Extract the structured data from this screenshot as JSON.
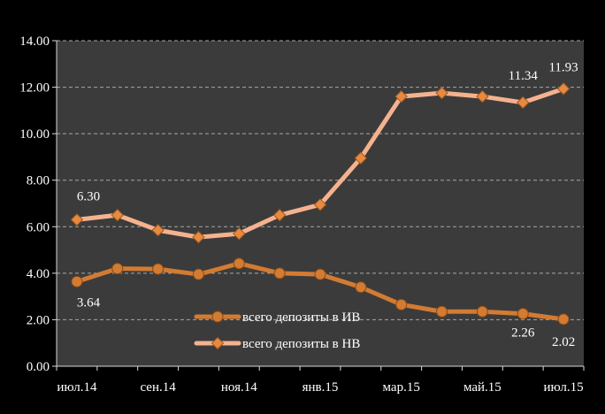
{
  "chart_data": {
    "type": "line",
    "categories": [
      "июл.14",
      "авг.14",
      "сен.14",
      "окт.14",
      "ноя.14",
      "дек.14",
      "янв.15",
      "фев.15",
      "мар.15",
      "апр.15",
      "май.15",
      "июн.15",
      "июл.15"
    ],
    "x_tick_labels": [
      "июл.14",
      "сен.14",
      "ноя.14",
      "янв.15",
      "мар.15",
      "май.15",
      "июл.15"
    ],
    "y_tick_labels": [
      "0.00",
      "2.00",
      "4.00",
      "6.00",
      "8.00",
      "10.00",
      "12.00",
      "14.00"
    ],
    "ylim": [
      0,
      14
    ],
    "grid": true,
    "legend_position": "bottom-center",
    "series": [
      {
        "name": "всего депозиты в ИВ",
        "color": "#d27b32",
        "marker": "circle",
        "values": [
          3.64,
          4.2,
          4.18,
          3.95,
          4.42,
          4.0,
          3.95,
          3.4,
          2.65,
          2.35,
          2.35,
          2.26,
          2.02
        ],
        "labels": [
          {
            "index": 0,
            "text": "3.64"
          },
          {
            "index": 11,
            "text": "2.26"
          },
          {
            "index": 12,
            "text": "2.02"
          }
        ]
      },
      {
        "name": "всего депозиты в НВ",
        "color": "#f5b28e",
        "marker": "diamond",
        "values": [
          6.3,
          6.5,
          5.85,
          5.55,
          5.7,
          6.5,
          6.95,
          8.95,
          11.6,
          11.75,
          11.6,
          11.34,
          11.93
        ],
        "labels": [
          {
            "index": 0,
            "text": "6.30"
          },
          {
            "index": 11,
            "text": "11.34"
          },
          {
            "index": 12,
            "text": "11.93"
          }
        ]
      }
    ]
  }
}
